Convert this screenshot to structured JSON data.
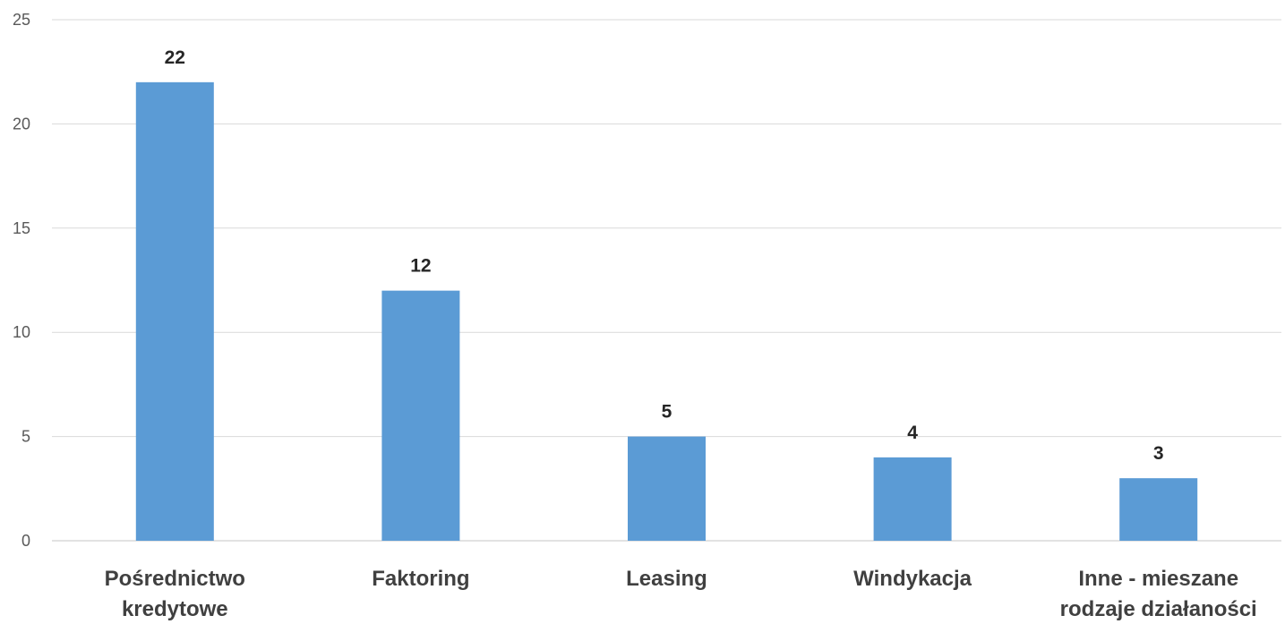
{
  "chart_data": {
    "type": "bar",
    "title": "",
    "xlabel": "",
    "ylabel": "",
    "categories": [
      [
        "Pośrednictwo",
        "kredytowe"
      ],
      [
        "Faktoring"
      ],
      [
        "Leasing"
      ],
      [
        "Windykacja"
      ],
      [
        "Inne - mieszane",
        "rodzaje działaności"
      ]
    ],
    "values": [
      22,
      12,
      5,
      4,
      3
    ],
    "ylim": [
      0,
      25
    ],
    "yticks": [
      0,
      5,
      10,
      15,
      20,
      25
    ],
    "grid": true,
    "data_labels": true,
    "bar_color": "#5b9bd5"
  }
}
